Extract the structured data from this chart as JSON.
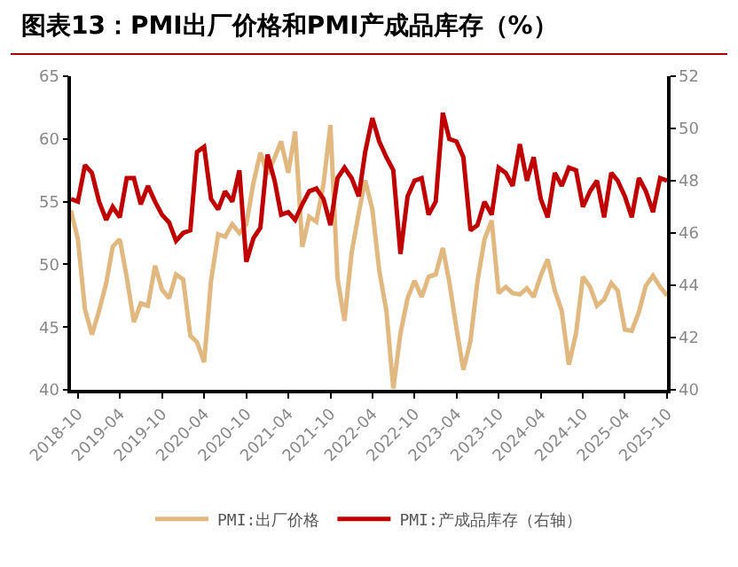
{
  "chart_data": {
    "type": "line",
    "title": "图表13：PMI出厂价格和PMI产成品库存（%）",
    "x": [
      "2018-09",
      "2018-10",
      "2018-11",
      "2018-12",
      "2019-01",
      "2019-02",
      "2019-03",
      "2019-04",
      "2019-05",
      "2019-06",
      "2019-07",
      "2019-08",
      "2019-09",
      "2019-10",
      "2019-11",
      "2019-12",
      "2020-01",
      "2020-02",
      "2020-03",
      "2020-04",
      "2020-05",
      "2020-06",
      "2020-07",
      "2020-08",
      "2020-09",
      "2020-10",
      "2020-11",
      "2020-12",
      "2021-01",
      "2021-02",
      "2021-03",
      "2021-04",
      "2021-05",
      "2021-06",
      "2021-07",
      "2021-08",
      "2021-09",
      "2021-10",
      "2021-11",
      "2021-12",
      "2022-01",
      "2022-02",
      "2022-03",
      "2022-04",
      "2022-05",
      "2022-06",
      "2022-07",
      "2022-08",
      "2022-09",
      "2022-10",
      "2022-11",
      "2022-12",
      "2023-01",
      "2023-02",
      "2023-03",
      "2023-04",
      "2023-05",
      "2023-06",
      "2023-07",
      "2023-08",
      "2023-09",
      "2023-10",
      "2023-11",
      "2023-12",
      "2024-01",
      "2024-02",
      "2024-03",
      "2024-04",
      "2024-05",
      "2024-06",
      "2024-07",
      "2024-08",
      "2024-09",
      "2024-10",
      "2024-11",
      "2024-12",
      "2025-01",
      "2025-02",
      "2025-03",
      "2025-04",
      "2025-05",
      "2025-06",
      "2025-07",
      "2025-08",
      "2025-09",
      "2025-10"
    ],
    "series": [
      {
        "name": "PMI:出厂价格",
        "color": "#e0b880",
        "values": [
          54.3,
          52.0,
          46.4,
          44.4,
          46.3,
          48.5,
          51.4,
          52.0,
          49.0,
          45.4,
          46.9,
          46.7,
          49.9,
          48.0,
          47.3,
          49.2,
          48.8,
          44.3,
          43.8,
          42.2,
          48.7,
          52.4,
          52.2,
          53.2,
          52.5,
          53.2,
          56.5,
          58.9,
          57.2,
          58.5,
          59.8,
          57.3,
          60.6,
          51.4,
          53.8,
          53.4,
          56.4,
          61.1,
          48.9,
          45.5,
          50.9,
          54.1,
          56.7,
          54.4,
          49.5,
          46.3,
          40.1,
          44.5,
          47.3,
          48.7,
          47.4,
          49.0,
          49.2,
          51.3,
          48.6,
          44.9,
          41.6,
          43.9,
          48.6,
          52.0,
          53.5,
          47.7,
          48.2,
          47.7,
          47.6,
          48.1,
          47.4,
          49.1,
          50.4,
          47.9,
          46.3,
          42.0,
          44.5,
          49.0,
          48.2,
          46.7,
          47.2,
          48.5,
          47.9,
          44.8,
          44.7,
          46.2,
          48.3,
          49.1,
          48.2,
          47.5
        ]
      },
      {
        "name": "PMI:产成品库存（右轴）",
        "color": "#c00000",
        "axis": "y2",
        "values": [
          47.3,
          47.2,
          48.6,
          48.3,
          47.2,
          46.5,
          47.0,
          46.6,
          48.1,
          48.1,
          47.1,
          47.8,
          47.2,
          46.7,
          46.4,
          45.7,
          46.0,
          46.1,
          49.1,
          49.3,
          47.3,
          46.9,
          47.6,
          47.2,
          48.4,
          44.9,
          45.8,
          46.2,
          49.0,
          48.0,
          46.7,
          46.8,
          46.5,
          47.1,
          47.6,
          47.7,
          47.3,
          46.3,
          48.1,
          48.5,
          48.1,
          47.4,
          49.1,
          50.4,
          49.5,
          48.9,
          48.4,
          45.2,
          47.4,
          48.0,
          48.1,
          46.7,
          47.2,
          50.6,
          49.6,
          49.5,
          48.9,
          46.1,
          46.3,
          47.2,
          46.7,
          48.5,
          48.3,
          47.8,
          49.4,
          48.0,
          48.9,
          47.3,
          46.6,
          48.3,
          47.8,
          48.5,
          48.4,
          47.0,
          47.6,
          48.0,
          46.6,
          48.3,
          48.0,
          47.4,
          46.6,
          48.1,
          47.6,
          46.8,
          48.1,
          48.0
        ]
      }
    ],
    "xlim": [
      "2018-09",
      "2025-10"
    ],
    "xticks": [
      "2018-10",
      "2019-04",
      "2019-10",
      "2020-04",
      "2020-10",
      "2021-04",
      "2021-10",
      "2022-04",
      "2022-10",
      "2023-04",
      "2023-10",
      "2024-04",
      "2024-10",
      "2025-04",
      "2025-10"
    ],
    "ylim": [
      40,
      65
    ],
    "yticks": [
      40,
      45,
      50,
      55,
      60,
      65
    ],
    "y2lim": [
      40,
      52
    ],
    "y2ticks": [
      40,
      42,
      44,
      46,
      48,
      50,
      52
    ],
    "grid": false,
    "legend": "bottom",
    "marker": "none",
    "line_style": "solid"
  }
}
